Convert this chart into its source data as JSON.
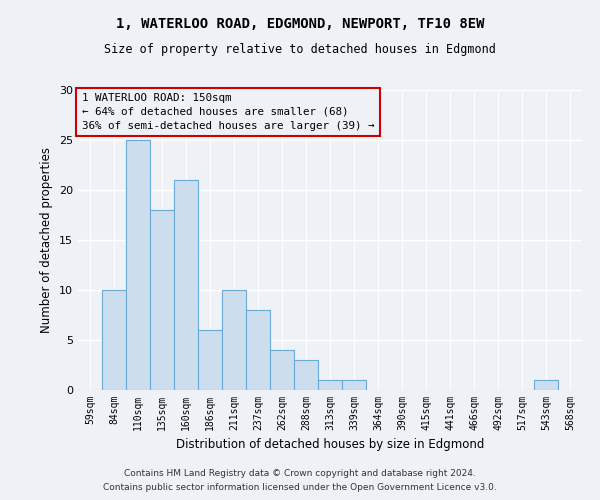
{
  "title1": "1, WATERLOO ROAD, EDGMOND, NEWPORT, TF10 8EW",
  "title2": "Size of property relative to detached houses in Edgmond",
  "xlabel": "Distribution of detached houses by size in Edgmond",
  "ylabel": "Number of detached properties",
  "bin_labels": [
    "59sqm",
    "84sqm",
    "110sqm",
    "135sqm",
    "160sqm",
    "186sqm",
    "211sqm",
    "237sqm",
    "262sqm",
    "288sqm",
    "313sqm",
    "339sqm",
    "364sqm",
    "390sqm",
    "415sqm",
    "441sqm",
    "466sqm",
    "492sqm",
    "517sqm",
    "543sqm",
    "568sqm"
  ],
  "values": [
    0,
    10,
    25,
    18,
    21,
    6,
    10,
    8,
    4,
    3,
    1,
    1,
    0,
    0,
    0,
    0,
    0,
    0,
    0,
    1,
    0
  ],
  "bar_color": "#ccdded",
  "bar_edge_color": "#6aaad4",
  "annotation_line1": "1 WATERLOO ROAD: 150sqm",
  "annotation_line2": "← 64% of detached houses are smaller (68)",
  "annotation_line3": "36% of semi-detached houses are larger (39) →",
  "annotation_box_color": "#cc0000",
  "footnote1": "Contains HM Land Registry data © Crown copyright and database right 2024.",
  "footnote2": "Contains public sector information licensed under the Open Government Licence v3.0.",
  "ylim": [
    0,
    30
  ],
  "bg_color": "#eef2f7",
  "grid_color": "#ffffff"
}
